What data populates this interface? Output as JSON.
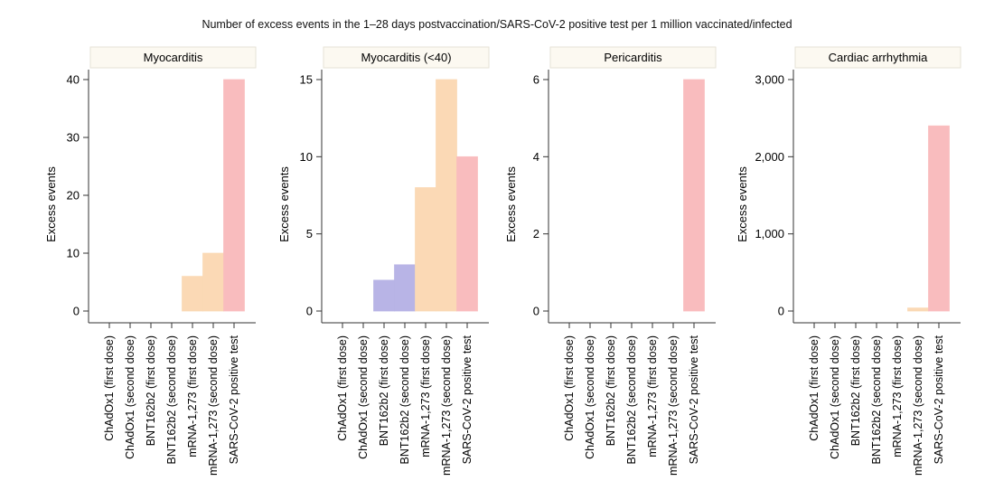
{
  "chart_data": {
    "type": "bar",
    "title": "Number of excess events in the 1–28 days postvaccination/SARS-CoV-2 positive test per 1 million vaccinated/infected",
    "categories": [
      "ChAdOx1 (first dose)",
      "ChAdOx1 (second dose)",
      "BNT162b2 (first dose)",
      "BNT162b2 (second dose)",
      "mRNA-1,273 (first dose)",
      "mRNA-1,273 (second dose)",
      "SARS-CoV-2 positive test"
    ],
    "category_colors": [
      "#b8b4e6",
      "#b8b4e6",
      "#b8b4e6",
      "#b8b4e6",
      "#fbd9b5",
      "#fbd9b5",
      "#f9bcbe"
    ],
    "panels": [
      {
        "title": "Myocarditis",
        "ylabel": "Excess events",
        "ylim": [
          0,
          40
        ],
        "yticks": [
          0,
          10,
          20,
          30,
          40
        ],
        "ytick_labels": [
          "0",
          "10",
          "20",
          "30",
          "40"
        ],
        "values": [
          0,
          0,
          0,
          0,
          6,
          10,
          40
        ]
      },
      {
        "title": "Myocarditis (<40)",
        "ylabel": "Excess events",
        "ylim": [
          0,
          15
        ],
        "yticks": [
          0,
          5,
          10,
          15
        ],
        "ytick_labels": [
          "0",
          "5",
          "10",
          "15"
        ],
        "values": [
          0,
          0,
          2,
          3,
          8,
          15,
          10
        ]
      },
      {
        "title": "Pericarditis",
        "ylabel": "Excess events",
        "ylim": [
          0,
          6
        ],
        "yticks": [
          0,
          2,
          4,
          6
        ],
        "ytick_labels": [
          "0",
          "2",
          "4",
          "6"
        ],
        "values": [
          0,
          0,
          0,
          0,
          0,
          0,
          6
        ]
      },
      {
        "title": "Cardiac arrhythmia",
        "ylabel": "Excess events",
        "ylim": [
          0,
          3000
        ],
        "yticks": [
          0,
          1000,
          2000,
          3000
        ],
        "ytick_labels": [
          "0",
          "1,000",
          "2,000",
          "3,000"
        ],
        "values": [
          0,
          0,
          0,
          0,
          0,
          40,
          2400
        ]
      }
    ],
    "grid": false,
    "legend": "none"
  }
}
